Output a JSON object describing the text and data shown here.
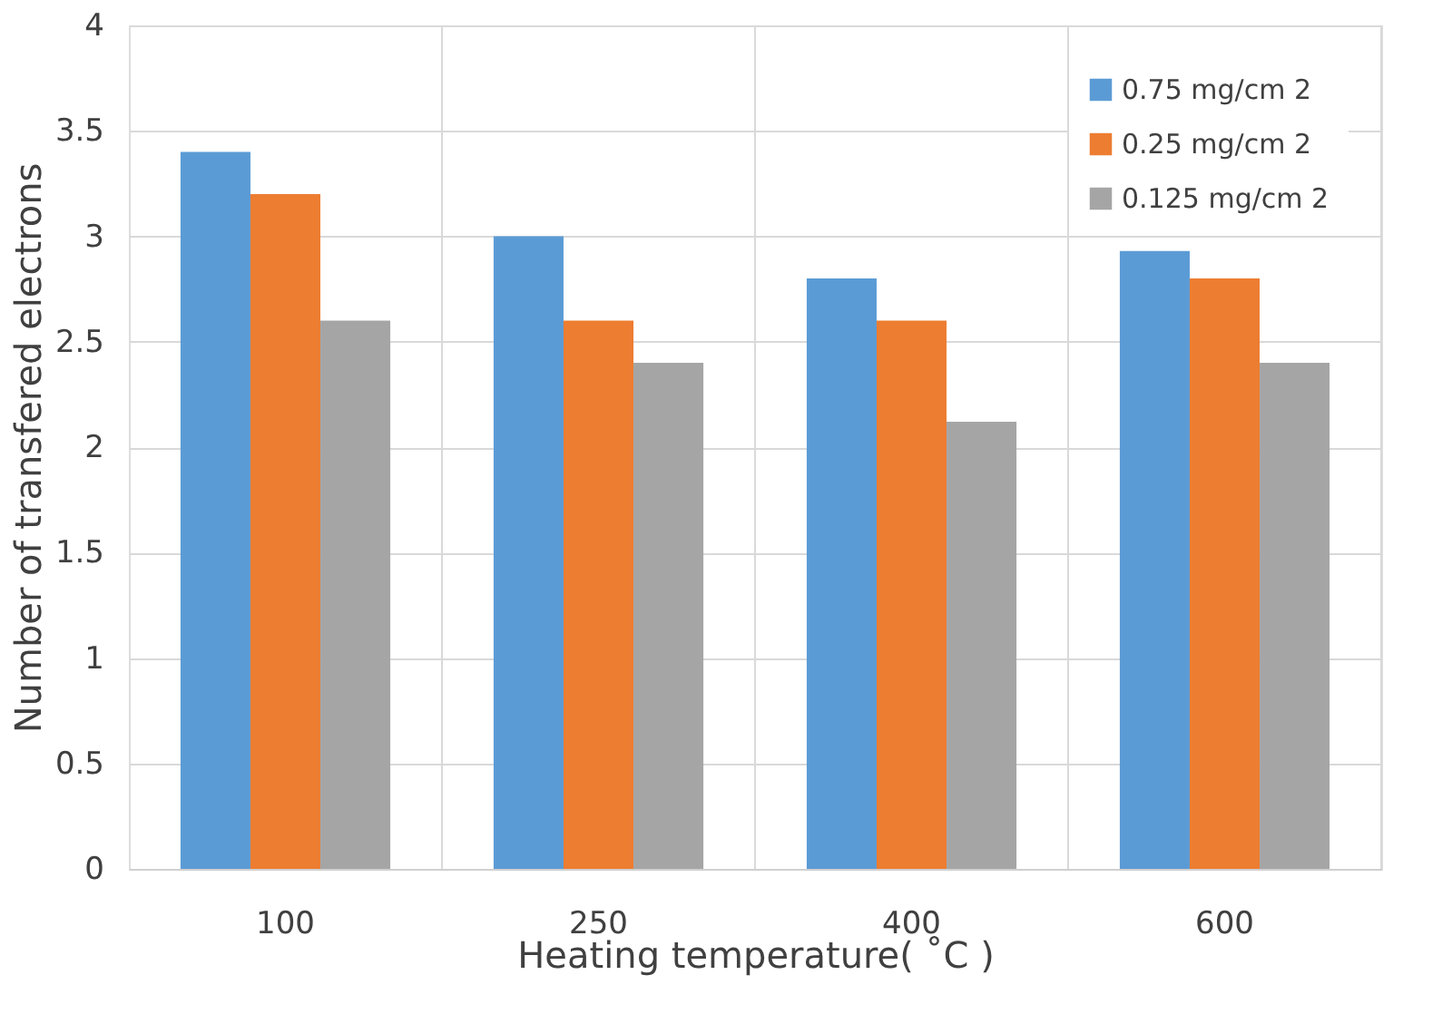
{
  "chart_data": {
    "type": "bar",
    "xlabel": "Heating temperature( ˚C )",
    "ylabel": "Number of transfered  electrons",
    "categories": [
      "100",
      "250",
      "400",
      "600"
    ],
    "series": [
      {
        "name": "0.75 mg/cm 2",
        "color": "#5b9bd5",
        "values": [
          3.4,
          3.0,
          2.8,
          2.93
        ]
      },
      {
        "name": "0.25 mg/cm 2",
        "color": "#ed7d31",
        "values": [
          3.2,
          2.6,
          2.6,
          2.8
        ]
      },
      {
        "name": "0.125 mg/cm 2",
        "color": "#a5a5a5",
        "values": [
          2.6,
          2.4,
          2.12,
          2.4
        ]
      }
    ],
    "ylim": [
      0,
      4
    ],
    "yticks": [
      0,
      0.5,
      1,
      1.5,
      2,
      2.5,
      3,
      3.5,
      4
    ],
    "grid": true,
    "legend": "top right"
  }
}
